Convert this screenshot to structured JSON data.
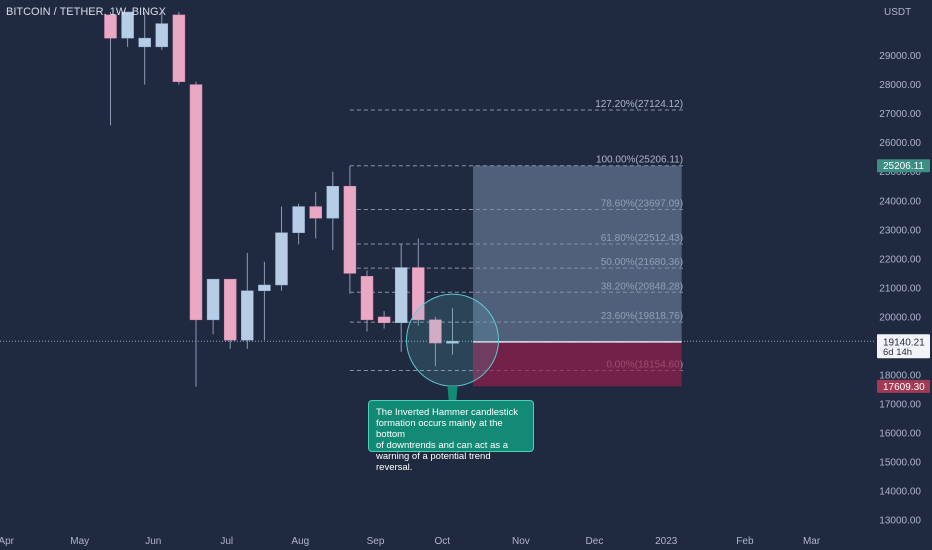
{
  "header": {
    "symbol_title": "BITCOIN / TETHER, 1W, BINGX"
  },
  "chart_data": {
    "type": "candlestick",
    "y_axis": {
      "unit": "USDT",
      "range": [
        12500,
        30500
      ],
      "ticks": [
        13000,
        14000,
        15000,
        16000,
        17000,
        18000,
        19000,
        20000,
        21000,
        22000,
        23000,
        24000,
        25000,
        26000,
        27000,
        28000,
        29000
      ],
      "tick_labels": [
        "13000.00",
        "14000.00",
        "15000.00",
        "16000.00",
        "17000.00",
        "18000.00",
        "19000.00",
        "20000.00",
        "21000.00",
        "22000.00",
        "23000.00",
        "24000.00",
        "25000.00",
        "26000.00",
        "27000.00",
        "28000.00",
        "29000.00"
      ]
    },
    "x_axis": {
      "labels": [
        {
          "label": "Apr",
          "week": -11.1
        },
        {
          "label": "May",
          "week": -6.8
        },
        {
          "label": "Jun",
          "week": -2.5
        },
        {
          "label": "Jul",
          "week": 1.8
        },
        {
          "label": "Aug",
          "week": 6.1
        },
        {
          "label": "Sep",
          "week": 10.5
        },
        {
          "label": "Oct",
          "week": 14.4
        },
        {
          "label": "Nov",
          "week": 19.0
        },
        {
          "label": "Dec",
          "week": 23.3
        },
        {
          "label": "2023",
          "week": 27.5
        },
        {
          "label": "Feb",
          "week": 32.1
        },
        {
          "label": "Mar",
          "week": 36.0
        }
      ],
      "range": [
        -12.5,
        38
      ]
    },
    "candles": [
      {
        "week": -5,
        "open": 30400,
        "high": 30500,
        "close": 29600,
        "low": 26600
      },
      {
        "week": -4,
        "open": 29600,
        "high": 30500,
        "close": 30500,
        "low": 29300
      },
      {
        "week": -3,
        "open": 29300,
        "high": 30500,
        "close": 29600,
        "low": 28000
      },
      {
        "week": -2,
        "open": 29300,
        "high": 30500,
        "close": 30100,
        "low": 29200
      },
      {
        "week": -1,
        "open": 30400,
        "high": 30500,
        "close": 28100,
        "low": 28000
      },
      {
        "week": 0,
        "open": 28000,
        "high": 28100,
        "close": 19900,
        "low": 17600
      },
      {
        "week": 1,
        "open": 19900,
        "high": 21300,
        "close": 21300,
        "low": 19400
      },
      {
        "week": 2,
        "open": 21300,
        "high": 21300,
        "close": 19200,
        "low": 18900
      },
      {
        "week": 3,
        "open": 19200,
        "high": 22200,
        "close": 20900,
        "low": 18900
      },
      {
        "week": 4,
        "open": 20900,
        "high": 21900,
        "close": 21100,
        "low": 19200
      },
      {
        "week": 5,
        "open": 21100,
        "high": 23800,
        "close": 22900,
        "low": 20900
      },
      {
        "week": 6,
        "open": 22900,
        "high": 23900,
        "close": 23800,
        "low": 22500
      },
      {
        "week": 7,
        "open": 23800,
        "high": 24300,
        "close": 23400,
        "low": 22700
      },
      {
        "week": 8,
        "open": 23400,
        "high": 25000,
        "close": 24500,
        "low": 22300
      },
      {
        "week": 9,
        "open": 24500,
        "high": 25200,
        "close": 21500,
        "low": 20800
      },
      {
        "week": 10,
        "open": 21400,
        "high": 21600,
        "close": 19900,
        "low": 19500
      },
      {
        "week": 11,
        "open": 20000,
        "high": 20200,
        "close": 19800,
        "low": 19600
      },
      {
        "week": 12,
        "open": 19800,
        "high": 22500,
        "close": 21700,
        "low": 18800
      },
      {
        "week": 13,
        "open": 21700,
        "high": 22700,
        "close": 19900,
        "low": 19700
      },
      {
        "week": 14,
        "open": 19900,
        "high": 20000,
        "close": 19100,
        "low": 18300
      },
      {
        "week": 15,
        "open": 19090,
        "high": 20300,
        "close": 19164,
        "low": 18700
      }
    ],
    "fibonacci": {
      "x_from_week": 9,
      "x_to_week": 28.6,
      "levels": [
        {
          "label": "127.20%(27124.12)",
          "price": 27124.12
        },
        {
          "label": "100.00%(25206.11)",
          "price": 25206.11
        },
        {
          "label": "78.60%(23697.09)",
          "price": 23697.09
        },
        {
          "label": "61.80%(22512.43)",
          "price": 22512.43
        },
        {
          "label": "50.00%(21680.36)",
          "price": 21680.36
        },
        {
          "label": "38.20%(20848.28)",
          "price": 20848.28
        },
        {
          "label": "23.60%(19818.76)",
          "price": 19818.76
        },
        {
          "label": "0.00%(18154.60)",
          "price": 18154.6
        }
      ]
    },
    "position_zones": {
      "entry_price": 19140.21,
      "target_price": 25206.11,
      "stop_price": 17609.3,
      "from_week": 16.2,
      "to_week": 28.4
    },
    "price_labels": [
      {
        "text": "25206.11",
        "price": 25206.11,
        "bg": "#3d8f84"
      },
      {
        "text": "19164.11",
        "price": 19164.11,
        "bg": "#f2f3f6",
        "sub": "6d 14h"
      },
      {
        "text": "19140.21",
        "price": 19140.21,
        "bg": "#f2f3f6"
      },
      {
        "text": "17609.30",
        "price": 17609.3,
        "bg": "#a33a55"
      }
    ],
    "annotation": {
      "text_lines": [
        "The Inverted Hammer candlestick",
        "formation occurs mainly at the bottom",
        "of downtrends and can act as a",
        "warning of a potential trend reversal."
      ],
      "circle_center_week": 15,
      "circle_center_price": 19200
    },
    "colors": {
      "background": "#1f2a40",
      "bull_fill": "#b7cde6",
      "bear_fill": "#e9a9c4",
      "wick": "#8f9bb3",
      "fib_line": "#8a93a3",
      "target_zone": "rgba(120,140,170,0.55)",
      "stop_zone": "rgba(150,30,75,0.70)",
      "text": "#aeb6c6"
    }
  }
}
